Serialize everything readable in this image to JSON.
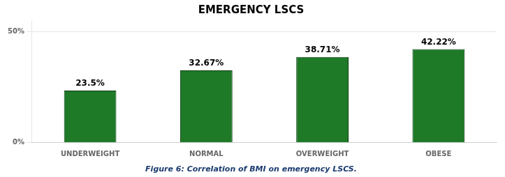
{
  "chart_data": {
    "type": "bar",
    "title": "EMERGENCY LSCS",
    "categories": [
      "UNDERWEIGHT",
      "NORMAL",
      "OVERWEIGHT",
      "OBESE"
    ],
    "values": [
      23.5,
      32.67,
      38.71,
      42.22
    ],
    "value_labels": [
      "23.5%",
      "32.67%",
      "38.71%",
      "42.22%"
    ],
    "data_labels": true,
    "color": "#1f7a28",
    "ylim": [
      0,
      55
    ],
    "yticks": [
      {
        "value": 0,
        "label": "0%"
      },
      {
        "value": 50,
        "label": "50%"
      }
    ],
    "grid": true,
    "caption": "Figure 6: Correlation of BMI on emergency LSCS."
  }
}
